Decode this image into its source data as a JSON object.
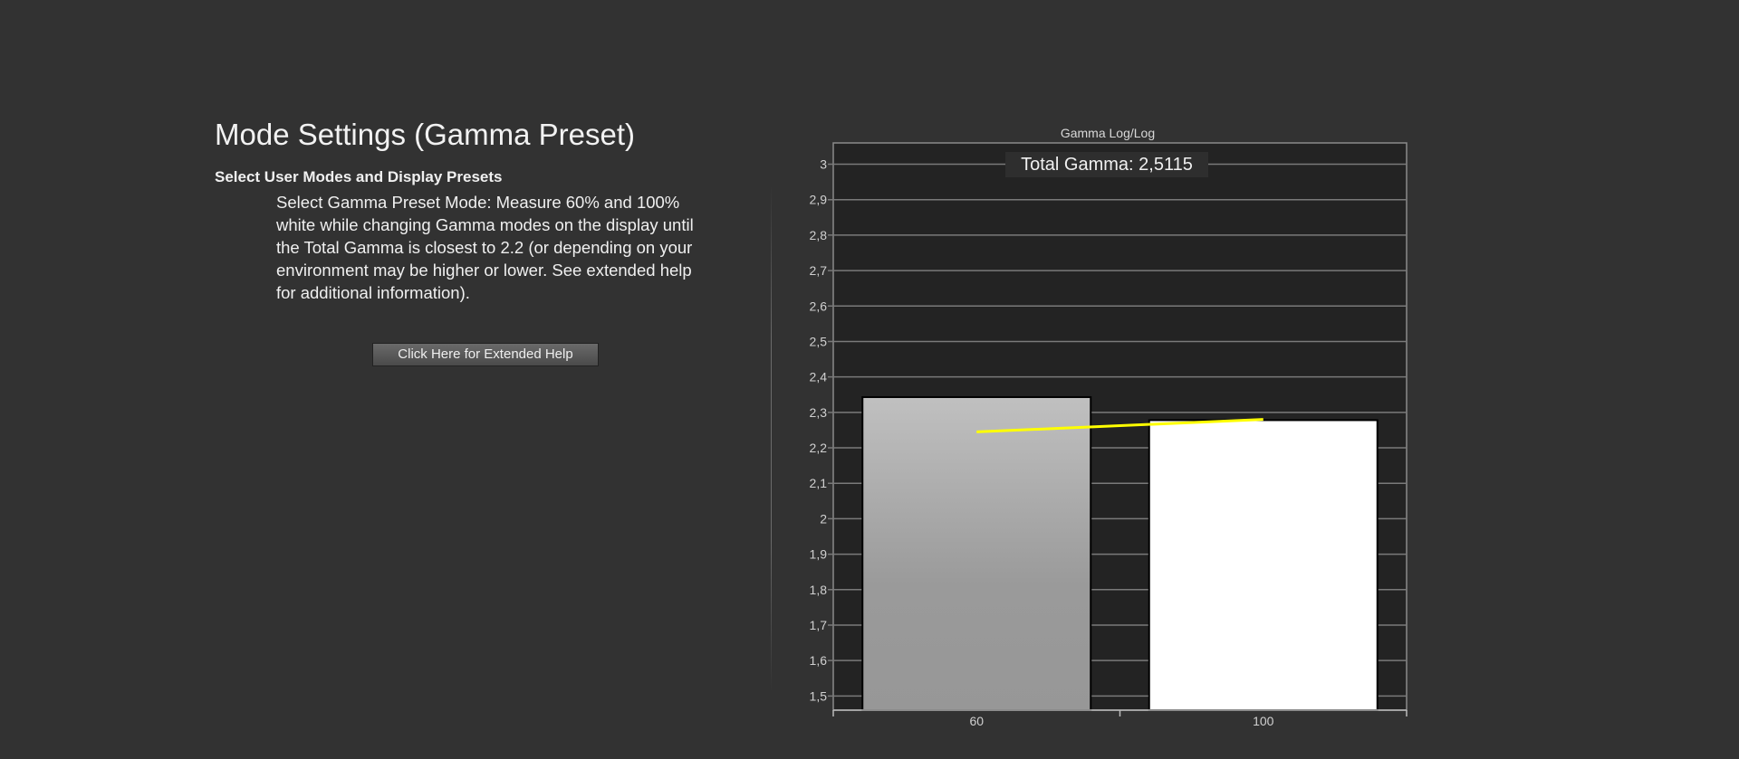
{
  "page": {
    "title": "Mode Settings (Gamma Preset)",
    "subtitle": "Select User Modes and Display Presets",
    "description": "Select Gamma Preset Mode: Measure 60% and 100% white while changing Gamma modes on the display until the Total Gamma is closest to 2.2 (or depending on your environment may be higher or lower. See extended help for additional information).",
    "help_button_label": "Click Here for Extended Help"
  },
  "chart_data": {
    "type": "bar",
    "title": "Gamma Log/Log",
    "annotation": "Total Gamma: 2,5115",
    "categories": [
      "60",
      "100"
    ],
    "values": [
      2.343,
      2.278
    ],
    "bar_colors": [
      "#a8a8a8",
      "#ffffff"
    ],
    "line_series": {
      "color": "#ffff00",
      "values": [
        2.245,
        2.28
      ]
    },
    "ylim": [
      1.46,
      3.06
    ],
    "yticks": [
      "1,5",
      "1,6",
      "1,7",
      "1,8",
      "1,9",
      "2",
      "2,1",
      "2,2",
      "2,3",
      "2,4",
      "2,5",
      "2,6",
      "2,7",
      "2,8",
      "2,9",
      "3"
    ],
    "ytick_values": [
      1.5,
      1.6,
      1.7,
      1.8,
      1.9,
      2.0,
      2.1,
      2.2,
      2.3,
      2.4,
      2.5,
      2.6,
      2.7,
      2.8,
      2.9,
      3.0
    ],
    "grid": true,
    "background": "#232323"
  }
}
